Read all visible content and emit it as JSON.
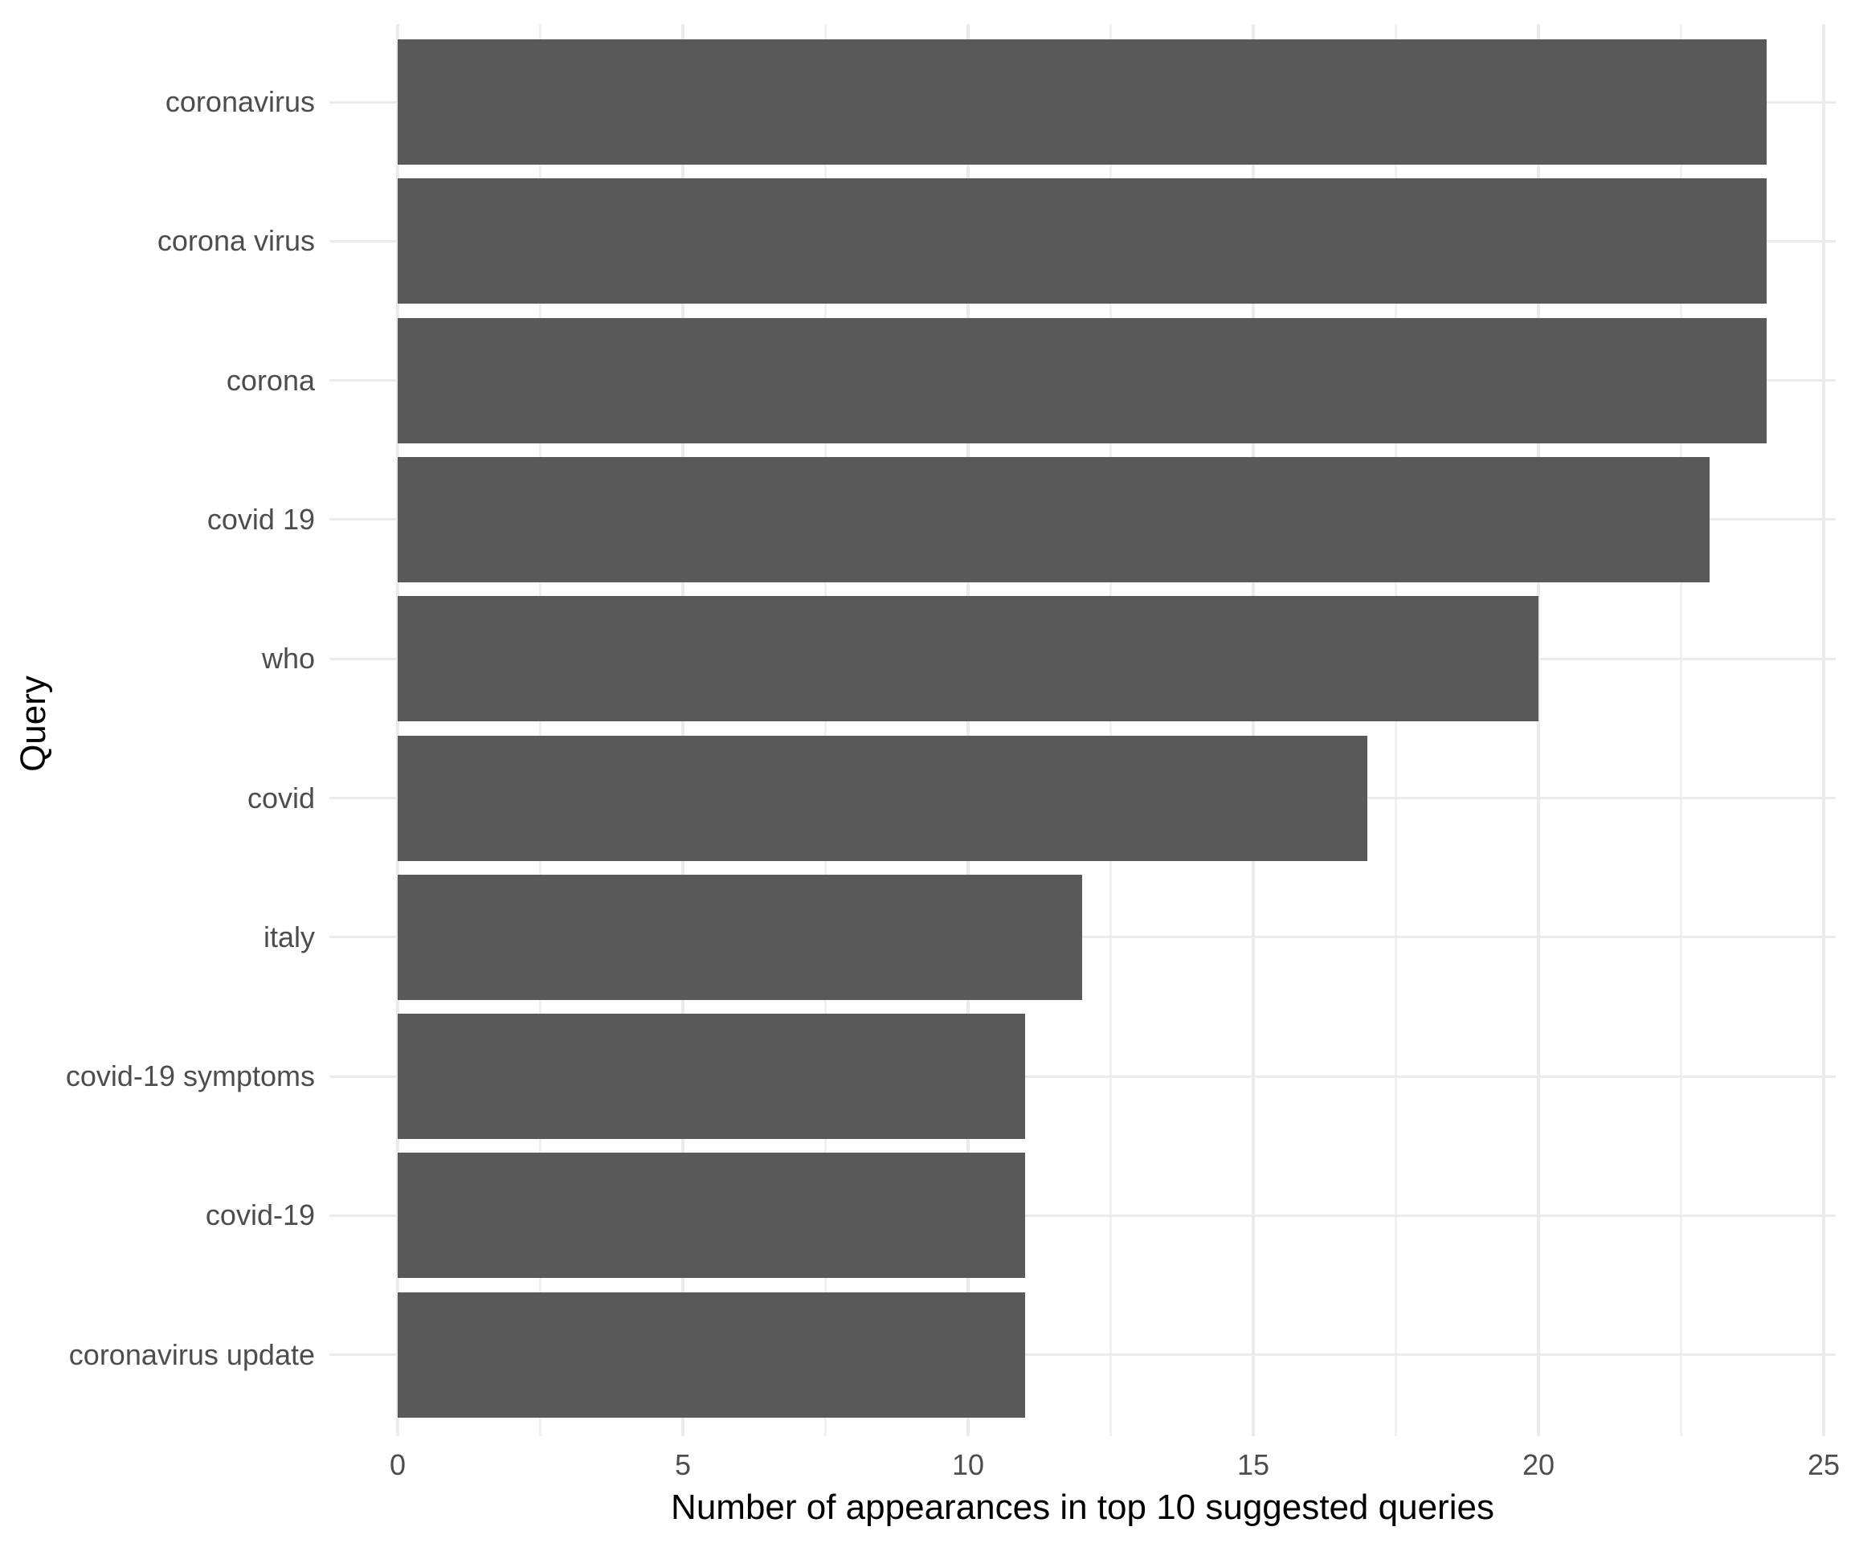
{
  "chart_data": {
    "type": "bar",
    "orientation": "horizontal",
    "title": "",
    "xlabel": "Number of appearances in top 10 suggested queries",
    "ylabel": "Query",
    "categories": [
      "coronavirus",
      "corona virus",
      "corona",
      "covid 19",
      "who",
      "covid",
      "italy",
      "covid-19 symptoms",
      "covid-19",
      "coronavirus update"
    ],
    "values": [
      24,
      24,
      24,
      23,
      20,
      17,
      12,
      11,
      11,
      11
    ],
    "xlim": [
      0,
      25
    ],
    "x_major_ticks": [
      0,
      5,
      10,
      15,
      20,
      25
    ],
    "x_minor_ticks": [
      2.5,
      7.5,
      12.5,
      17.5,
      22.5
    ],
    "grid": "major-and-minor-vertical, major-horizontal",
    "legend": "none",
    "colors": {
      "bar_fill": "#595959",
      "major_gridline": "#ebebeb",
      "minor_gridline": "#f1f1f1",
      "tick_label": "#4d4d4d",
      "axis_title": "#000000",
      "background": "#ffffff"
    }
  }
}
